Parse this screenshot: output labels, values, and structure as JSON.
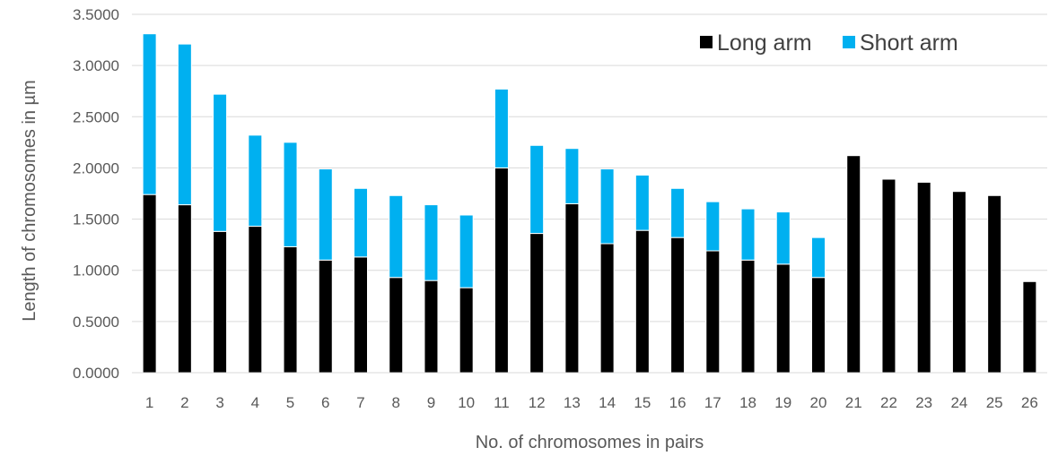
{
  "chart_data": {
    "type": "bar",
    "stacked": true,
    "xlabel": "No. of chromosomes in pairs",
    "ylabel": "Length of chromosomes in µm",
    "ylim": [
      0,
      3.5
    ],
    "yticks": [
      "0.0000",
      "0.5000",
      "1.0000",
      "1.5000",
      "2.0000",
      "2.5000",
      "3.0000",
      "3.5000"
    ],
    "grid": true,
    "legend_position": "top-right",
    "categories": [
      "1",
      "2",
      "3",
      "4",
      "5",
      "6",
      "7",
      "8",
      "9",
      "10",
      "11",
      "12",
      "13",
      "14",
      "15",
      "16",
      "17",
      "18",
      "19",
      "20",
      "21",
      "22",
      "23",
      "24",
      "25",
      "26"
    ],
    "series": [
      {
        "name": "Long arm",
        "color": "#000000",
        "values": [
          1.74,
          1.64,
          1.38,
          1.43,
          1.23,
          1.1,
          1.13,
          0.93,
          0.9,
          0.83,
          2.0,
          1.36,
          1.65,
          1.26,
          1.39,
          1.32,
          1.19,
          1.1,
          1.06,
          0.93,
          2.12,
          1.89,
          1.86,
          1.77,
          1.73,
          0.89
        ]
      },
      {
        "name": "Short arm",
        "color": "#00B0F0",
        "values": [
          1.57,
          1.57,
          1.34,
          0.89,
          1.02,
          0.89,
          0.67,
          0.8,
          0.74,
          0.71,
          0.77,
          0.86,
          0.54,
          0.73,
          0.54,
          0.48,
          0.48,
          0.5,
          0.51,
          0.39,
          0,
          0,
          0,
          0,
          0,
          0
        ]
      }
    ]
  }
}
